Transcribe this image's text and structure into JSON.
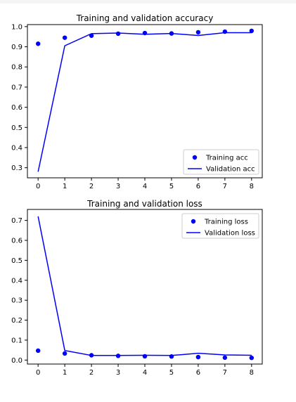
{
  "chart_data": [
    {
      "type": "line",
      "title": "Training and validation accuracy",
      "xlabel": "",
      "ylabel": "",
      "x": [
        0,
        1,
        2,
        3,
        4,
        5,
        6,
        7,
        8
      ],
      "x_ticks": [
        "0",
        "1",
        "2",
        "3",
        "4",
        "5",
        "6",
        "7",
        "8"
      ],
      "y_ticks": [
        "0.3",
        "0.4",
        "0.5",
        "0.6",
        "0.7",
        "0.8",
        "0.9",
        "1.0"
      ],
      "ylim": [
        0.25,
        1.01
      ],
      "xlim": [
        -0.4,
        8.4
      ],
      "grid": false,
      "legend_position": "lower-right",
      "series": [
        {
          "name": "Training acc",
          "style": "points",
          "color": "#0000ff",
          "values": [
            0.915,
            0.945,
            0.955,
            0.965,
            0.968,
            0.966,
            0.972,
            0.975,
            0.979
          ]
        },
        {
          "name": "Validation acc",
          "style": "line",
          "color": "#0000ff",
          "values": [
            0.28,
            0.905,
            0.965,
            0.968,
            0.962,
            0.966,
            0.956,
            0.97,
            0.97
          ]
        }
      ]
    },
    {
      "type": "line",
      "title": "Training and validation loss",
      "xlabel": "",
      "ylabel": "",
      "x": [
        0,
        1,
        2,
        3,
        4,
        5,
        6,
        7,
        8
      ],
      "x_ticks": [
        "0",
        "1",
        "2",
        "3",
        "4",
        "5",
        "6",
        "7",
        "8"
      ],
      "y_ticks": [
        "0.0",
        "0.1",
        "0.2",
        "0.3",
        "0.4",
        "0.5",
        "0.6",
        "0.7"
      ],
      "ylim": [
        -0.02,
        0.755
      ],
      "xlim": [
        -0.4,
        8.4
      ],
      "grid": false,
      "legend_position": "upper-right",
      "series": [
        {
          "name": "Training loss",
          "style": "points",
          "color": "#0000ff",
          "values": [
            0.047,
            0.033,
            0.024,
            0.021,
            0.019,
            0.018,
            0.015,
            0.012,
            0.011
          ]
        },
        {
          "name": "Validation loss",
          "style": "line",
          "color": "#0000ff",
          "values": [
            0.72,
            0.048,
            0.023,
            0.023,
            0.024,
            0.023,
            0.034,
            0.026,
            0.024
          ]
        }
      ]
    }
  ]
}
